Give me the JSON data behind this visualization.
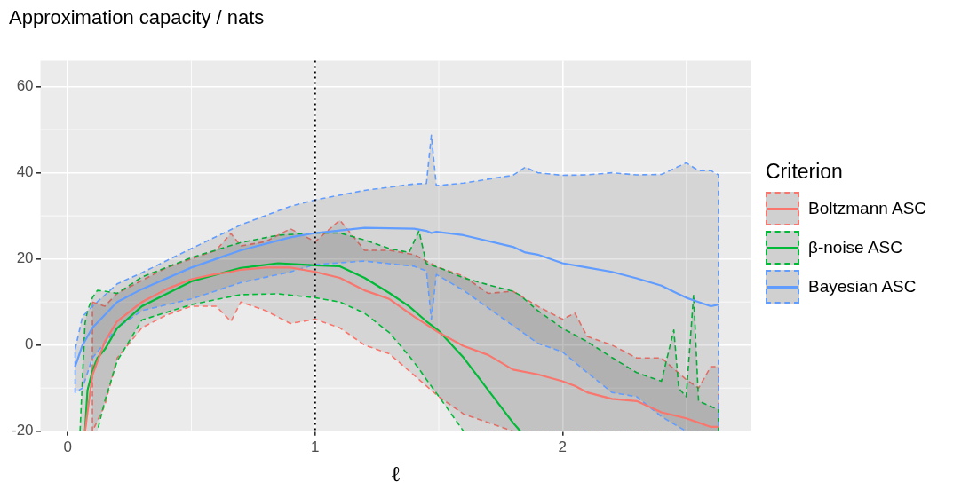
{
  "chart_data": {
    "type": "line",
    "title": "Approximation capacity / nats",
    "xlabel": "ℓ",
    "legend_title": "Criterion",
    "xlim": [
      -0.11,
      2.76
    ],
    "xticks": [
      0,
      1,
      2
    ],
    "ylim": [
      -20,
      66
    ],
    "yticks": [
      -20,
      0,
      20,
      40,
      60
    ],
    "grid": true,
    "legend": "right",
    "marker": "none",
    "line_style": "solid",
    "ref_lines": [
      {
        "axis": "x",
        "value": 1,
        "color": "#000000",
        "line_style": "dotted"
      }
    ],
    "series": [
      {
        "name": "Boltzmann ASC",
        "color": "#f8766d",
        "x": [
          0.07,
          0.1,
          0.15,
          0.2,
          0.3,
          0.4,
          0.5,
          0.6,
          0.66,
          0.7,
          0.8,
          0.9,
          1.0,
          1.1,
          1.2,
          1.3,
          1.4,
          1.5,
          1.6,
          1.7,
          1.8,
          1.9,
          2.0,
          2.05,
          2.1,
          2.2,
          2.3,
          2.4,
          2.5,
          2.55,
          2.6,
          2.63
        ],
        "values": [
          -20,
          -7,
          0.8,
          5.5,
          10,
          13,
          15.3,
          16.5,
          17,
          17.5,
          18,
          18,
          17,
          15.6,
          12.7,
          10.7,
          6.6,
          2.9,
          -0.2,
          -2.3,
          -5.7,
          -6.8,
          -8.4,
          -9.5,
          -11,
          -12.5,
          -13,
          -15.6,
          -17,
          -18,
          -19,
          -19
        ],
        "upper": [
          null,
          10,
          9,
          12,
          15,
          18,
          20,
          22,
          25.9,
          23,
          24,
          27,
          24,
          29,
          22,
          22,
          21,
          18,
          16,
          12,
          12.5,
          9,
          6,
          7.4,
          2,
          0,
          -3,
          -3,
          -8,
          -10,
          -5,
          -5
        ],
        "lower": [
          null,
          -20,
          -14,
          -3,
          4,
          7,
          9,
          9,
          5.5,
          10,
          8,
          5,
          6,
          4,
          0,
          -2,
          -7,
          -12,
          -16,
          -18,
          -20,
          -20,
          -20,
          -20,
          -20,
          -20,
          -20,
          -20,
          -20,
          -20,
          -20,
          -20
        ]
      },
      {
        "name": "β-noise ASC",
        "color": "#00ba38",
        "x": [
          0.05,
          0.07,
          0.08,
          0.1,
          0.12,
          0.15,
          0.2,
          0.3,
          0.5,
          0.7,
          0.85,
          1.0,
          1.1,
          1.2,
          1.3,
          1.38,
          1.42,
          1.45,
          1.5,
          1.6,
          1.7,
          1.8,
          1.83,
          1.9,
          2.0,
          2.1,
          2.2,
          2.3,
          2.4,
          2.45,
          2.47,
          2.5,
          2.53,
          2.55,
          2.63
        ],
        "values": [
          null,
          -20,
          -10.5,
          -6,
          -3,
          -1,
          3.9,
          9,
          14.8,
          17.9,
          19,
          18.5,
          18.3,
          15.6,
          12.1,
          9,
          7,
          5.5,
          3.3,
          -2.9,
          -10.5,
          -18,
          -20,
          null,
          null,
          null,
          null,
          null,
          null,
          null,
          null,
          null,
          null,
          null,
          null
        ],
        "upper": [
          -20,
          5,
          8,
          11,
          12.7,
          12.5,
          12,
          15.8,
          20.3,
          23.8,
          25.5,
          26,
          26,
          24.4,
          22.4,
          21.5,
          26.5,
          18.9,
          18,
          15.6,
          14,
          12.5,
          11.5,
          8,
          3.9,
          0.8,
          -2.9,
          -6.4,
          -8.4,
          3.5,
          -10,
          -12,
          11.7,
          -13,
          -15
        ],
        "lower": [
          -20,
          -20,
          -20,
          -20,
          -20,
          -13,
          -3.7,
          5.8,
          9.4,
          11.7,
          11.9,
          11,
          10,
          7.4,
          2.9,
          -2.5,
          -5.5,
          -8,
          -11.9,
          -20,
          -20,
          -20,
          -20,
          -20,
          -20,
          -20,
          -20,
          -20,
          -20,
          -20,
          -20,
          -20,
          -20,
          -20,
          -20
        ]
      },
      {
        "name": "Bayesian ASC",
        "color": "#619cff",
        "x": [
          0.03,
          0.06,
          0.1,
          0.2,
          0.3,
          0.5,
          0.7,
          0.9,
          1.0,
          1.2,
          1.4,
          1.45,
          1.47,
          1.49,
          1.6,
          1.8,
          1.85,
          1.9,
          2.0,
          2.1,
          2.2,
          2.3,
          2.4,
          2.5,
          2.55,
          2.6,
          2.63
        ],
        "values": [
          -5,
          0,
          4,
          10,
          13,
          18,
          22,
          25,
          26,
          27.2,
          27,
          26.5,
          26,
          26.3,
          25.5,
          22.8,
          21.5,
          21,
          19,
          18,
          17,
          15.5,
          13.8,
          11,
          10,
          9,
          9.4
        ],
        "upper": [
          -1,
          6.6,
          9,
          14.2,
          16.8,
          22.4,
          27.9,
          32.2,
          33.7,
          35.9,
          37.4,
          37.5,
          48.7,
          37,
          37.6,
          39.4,
          41.3,
          40,
          39.4,
          39.5,
          40,
          39.5,
          39.6,
          42.3,
          40.5,
          40.5,
          39.5
        ],
        "lower": [
          -11,
          -10,
          -3,
          4,
          8,
          10.7,
          14.5,
          17,
          18.7,
          19.5,
          18.3,
          17.2,
          6,
          16.4,
          12.7,
          4.5,
          2.5,
          0.4,
          -1.6,
          -6.4,
          -11,
          -12,
          -16.6,
          -20,
          -20,
          -20,
          -20
        ]
      }
    ]
  }
}
